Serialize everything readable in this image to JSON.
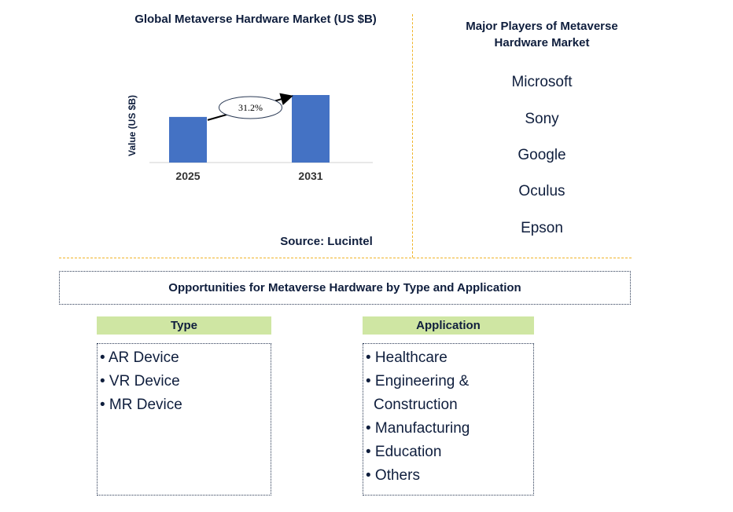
{
  "chart_data": {
    "type": "bar",
    "title": "Global Metaverse Hardware Market (US $B)",
    "ylabel": "Value (US $B)",
    "xlabel": "",
    "categories": [
      "2025",
      "2031"
    ],
    "values": [
      1.0,
      1.48
    ],
    "annotation": "31.2%",
    "bar_color": "#4472c4",
    "grid": false
  },
  "source": "Source: Lucintel",
  "players": {
    "title": "Major Players of Metaverse Hardware Market",
    "items": [
      "Microsoft",
      "Sony",
      "Google",
      "Oculus",
      "Epson"
    ]
  },
  "opportunities": {
    "title": "Opportunities for Metaverse Hardware by Type and Application",
    "type": {
      "header": "Type",
      "items": [
        "• AR Device",
        "• VR Device",
        "• MR Device"
      ]
    },
    "application": {
      "header": "Application",
      "items": [
        "• Healthcare",
        "• Engineering &",
        "Construction",
        "• Manufacturing",
        "• Education",
        "• Others"
      ]
    }
  },
  "colors": {
    "text": "#0f1e3d",
    "bar": "#4472c4",
    "divider": "#f0b429",
    "header_bg": "#cfe6a3"
  }
}
